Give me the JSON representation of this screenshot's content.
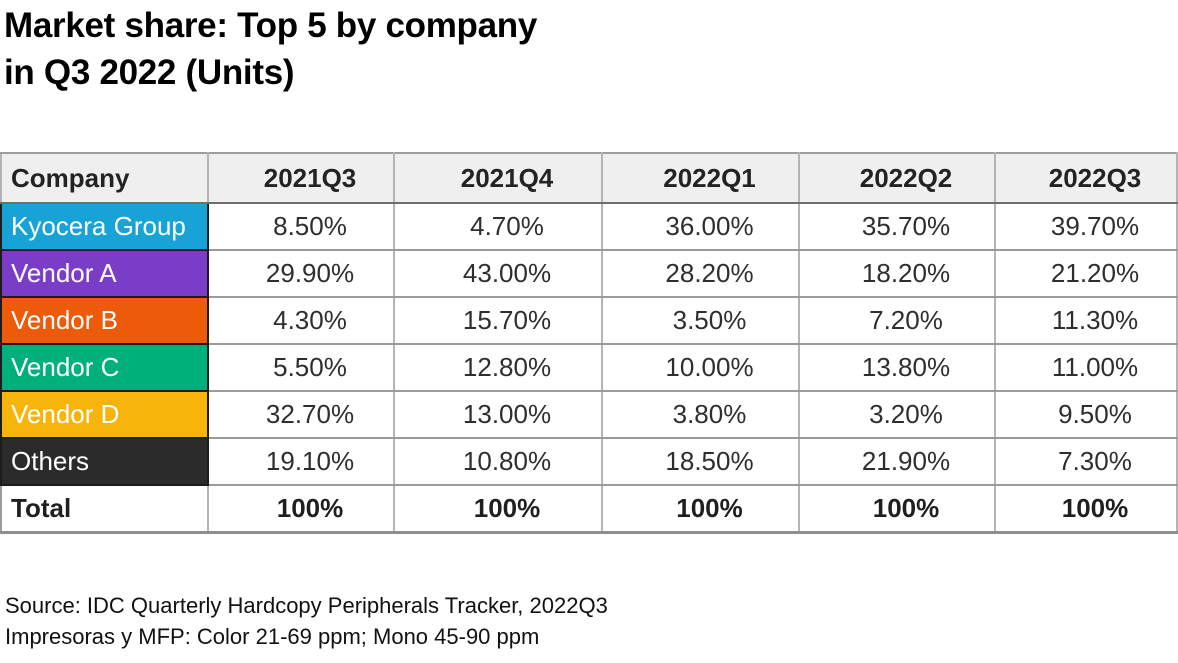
{
  "title": {
    "line1": "Market share: Top 5 by company",
    "line2": "in Q3 2022 (Units)"
  },
  "table": {
    "columns": [
      "Company",
      "2021Q3",
      "2021Q4",
      "2022Q1",
      "2022Q2",
      "2022Q3"
    ],
    "rows": [
      {
        "company": "Kyocera Group",
        "color": "#17A3D5",
        "values": [
          "8.50%",
          "4.70%",
          "36.00%",
          "35.70%",
          "39.70%"
        ]
      },
      {
        "company": "Vendor A",
        "color": "#7A3DC8",
        "values": [
          "29.90%",
          "43.00%",
          "28.20%",
          "18.20%",
          "21.20%"
        ]
      },
      {
        "company": "Vendor B",
        "color": "#EC5A0A",
        "values": [
          "4.30%",
          "15.70%",
          "3.50%",
          "7.20%",
          "11.30%"
        ]
      },
      {
        "company": "Vendor C",
        "color": "#00B07A",
        "values": [
          "5.50%",
          "12.80%",
          "10.00%",
          "13.80%",
          "11.00%"
        ]
      },
      {
        "company": "Vendor D",
        "color": "#F7B50C",
        "values": [
          "32.70%",
          "13.00%",
          "3.80%",
          "3.20%",
          "9.50%"
        ]
      },
      {
        "company": "Others",
        "color": "#2B2B2B",
        "values": [
          "19.10%",
          "10.80%",
          "18.50%",
          "21.90%",
          "7.30%"
        ]
      }
    ],
    "total": {
      "label": "Total",
      "values": [
        "100%",
        "100%",
        "100%",
        "100%",
        "100%"
      ]
    }
  },
  "footer": {
    "line1": "Source: IDC Quarterly Hardcopy Peripherals Tracker, 2022Q3",
    "line2": "Impresoras y MFP: Color 21-69 ppm; Mono 45-90 ppm"
  },
  "chart_data": {
    "type": "table",
    "title": "Market share: Top 5 by company in Q3 2022 (Units)",
    "categories": [
      "2021Q3",
      "2021Q4",
      "2022Q1",
      "2022Q2",
      "2022Q3"
    ],
    "series": [
      {
        "name": "Kyocera Group",
        "color": "#17A3D5",
        "values": [
          8.5,
          4.7,
          36.0,
          35.7,
          39.7
        ]
      },
      {
        "name": "Vendor A",
        "color": "#7A3DC8",
        "values": [
          29.9,
          43.0,
          28.2,
          18.2,
          21.2
        ]
      },
      {
        "name": "Vendor B",
        "color": "#EC5A0A",
        "values": [
          4.3,
          15.7,
          3.5,
          7.2,
          11.3
        ]
      },
      {
        "name": "Vendor C",
        "color": "#00B07A",
        "values": [
          5.5,
          12.8,
          10.0,
          13.8,
          11.0
        ]
      },
      {
        "name": "Vendor D",
        "color": "#F7B50C",
        "values": [
          32.7,
          13.0,
          3.8,
          3.2,
          9.5
        ]
      },
      {
        "name": "Others",
        "color": "#2B2B2B",
        "values": [
          19.1,
          10.8,
          18.5,
          21.9,
          7.3
        ]
      }
    ],
    "totals": [
      100,
      100,
      100,
      100,
      100
    ],
    "unit": "%",
    "source": "IDC Quarterly Hardcopy Peripherals Tracker, 2022Q3",
    "note": "Impresoras y MFP: Color 21-69 ppm; Mono 45-90 ppm"
  }
}
